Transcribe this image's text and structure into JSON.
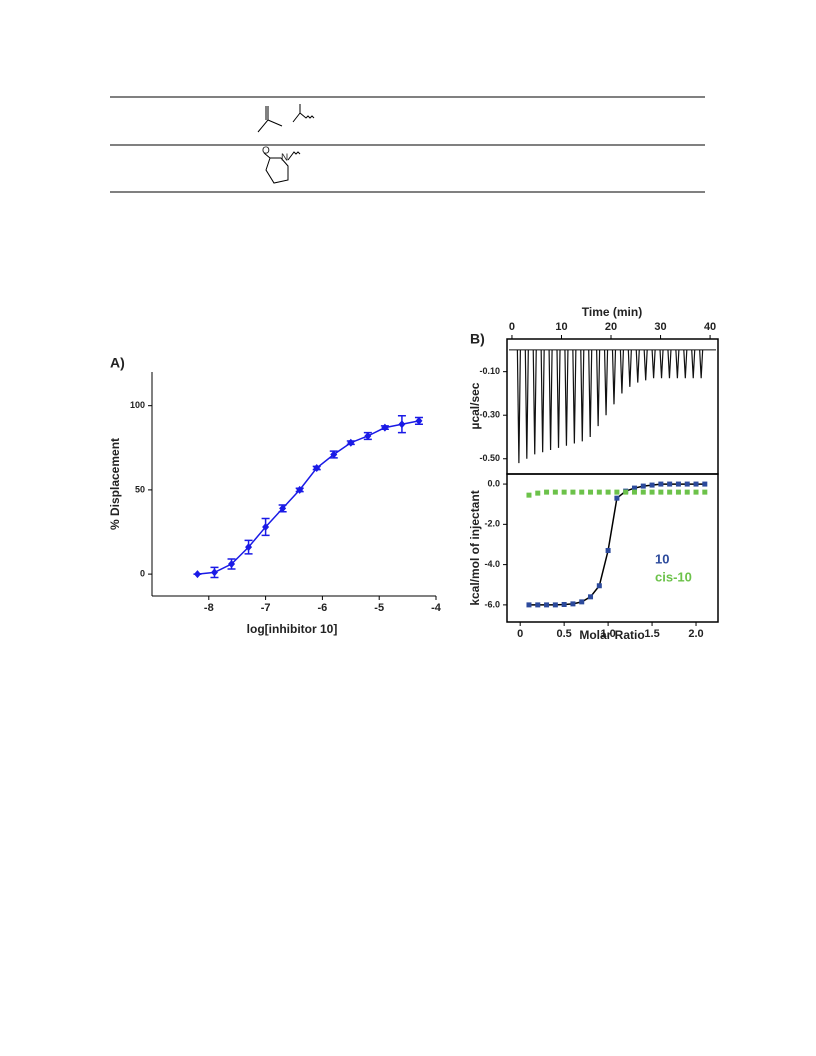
{
  "table": {
    "structure_labels": [
      "O",
      "N"
    ]
  },
  "chart_data": [
    {
      "type": "scatter",
      "panel_label": "A)",
      "xlabel": "log[inhibitor 10]",
      "ylabel": "% Displacement",
      "xlim": [
        -9,
        -4
      ],
      "ylim": [
        -13,
        120
      ],
      "xticks": [
        -8,
        -7,
        -6,
        -5,
        -4
      ],
      "yticks": [
        0,
        50,
        100
      ],
      "series": [
        {
          "color": "#1a1ae6",
          "marker": "diamond",
          "line": "#1a1ae6",
          "x": [
            -8.2,
            -7.9,
            -7.6,
            -7.3,
            -7.0,
            -6.7,
            -6.4,
            -6.1,
            -5.8,
            -5.5,
            -5.2,
            -4.9,
            -4.6,
            -4.3
          ],
          "values": [
            0,
            1,
            6,
            16,
            28,
            39,
            50,
            63,
            71,
            78,
            82,
            87,
            89,
            91
          ],
          "errors": [
            0,
            3,
            3,
            4,
            5,
            2,
            1,
            1,
            2,
            1,
            2,
            1,
            5,
            2
          ]
        }
      ]
    },
    {
      "type": "spike",
      "panel_label": "B)",
      "xlabel": "Time (min)",
      "ylabel": "µcal/sec",
      "xaxis_position": "top",
      "xlim": [
        -1,
        41.6
      ],
      "ylim": [
        -0.57,
        0.05
      ],
      "xticks": [
        0,
        10,
        20,
        30,
        40
      ],
      "yticks": [
        {
          "value": -0.1,
          "label": "-0.10"
        },
        {
          "value": -0.3,
          "label": "-0.30"
        },
        {
          "value": -0.5,
          "label": "-0.50"
        }
      ],
      "series": [
        {
          "color": "#111111",
          "x": [
            1.4,
            3.0,
            4.6,
            6.2,
            7.8,
            9.4,
            11.0,
            12.6,
            14.2,
            15.8,
            17.4,
            19.0,
            20.6,
            22.2,
            23.8,
            25.4,
            27.0,
            28.6,
            30.2,
            31.8,
            33.4,
            35.0,
            36.6,
            38.2
          ],
          "values": [
            -0.52,
            -0.5,
            -0.48,
            -0.47,
            -0.46,
            -0.45,
            -0.44,
            -0.43,
            -0.42,
            -0.4,
            -0.35,
            -0.3,
            -0.25,
            -0.2,
            -0.17,
            -0.15,
            -0.14,
            -0.13,
            -0.13,
            -0.13,
            -0.13,
            -0.13,
            -0.13,
            -0.13
          ]
        }
      ]
    },
    {
      "type": "scatter",
      "xlabel": "Molar Ratio",
      "ylabel": "kcal/mol of injectant",
      "xlim": [
        -0.15,
        2.25
      ],
      "ylim": [
        -6.85,
        0.5
      ],
      "xticks": [
        0,
        0.5,
        {
          "value": 1,
          "label": "1.0"
        },
        1.5,
        {
          "value": 2,
          "label": "2.0"
        }
      ],
      "yticks": [
        {
          "value": 0,
          "label": "0.0"
        },
        {
          "value": -2,
          "label": "-2.0"
        },
        {
          "value": -4,
          "label": "-4.0"
        },
        {
          "value": -6,
          "label": "-6.0"
        }
      ],
      "legend": "lower right",
      "series": [
        {
          "name": "10",
          "color": "#2c4a9c",
          "marker": "square",
          "line": "#000000",
          "x": [
            0.1,
            0.2,
            0.3,
            0.4,
            0.5,
            0.6,
            0.7,
            0.8,
            0.9,
            1.0,
            1.1,
            1.2,
            1.3,
            1.4,
            1.5,
            1.6,
            1.7,
            1.8,
            1.9,
            2.0,
            2.1
          ],
          "values": [
            -6.0,
            -6.0,
            -6.0,
            -6.0,
            -5.98,
            -5.95,
            -5.85,
            -5.6,
            -5.05,
            -3.3,
            -0.7,
            -0.35,
            -0.2,
            -0.1,
            -0.05,
            0,
            0,
            0,
            0,
            0,
            0
          ]
        },
        {
          "name": "cis-10",
          "color": "#6cc24a",
          "marker": "square",
          "x": [
            0.1,
            0.2,
            0.3,
            0.4,
            0.5,
            0.6,
            0.7,
            0.8,
            0.9,
            1.0,
            1.1,
            1.2,
            1.3,
            1.4,
            1.5,
            1.6,
            1.7,
            1.8,
            1.9,
            2.0,
            2.1
          ],
          "values": [
            -0.55,
            -0.45,
            -0.4,
            -0.4,
            -0.4,
            -0.4,
            -0.4,
            -0.4,
            -0.4,
            -0.4,
            -0.4,
            -0.4,
            -0.4,
            -0.4,
            -0.4,
            -0.4,
            -0.4,
            -0.4,
            -0.4,
            -0.4,
            -0.4
          ]
        }
      ]
    }
  ]
}
